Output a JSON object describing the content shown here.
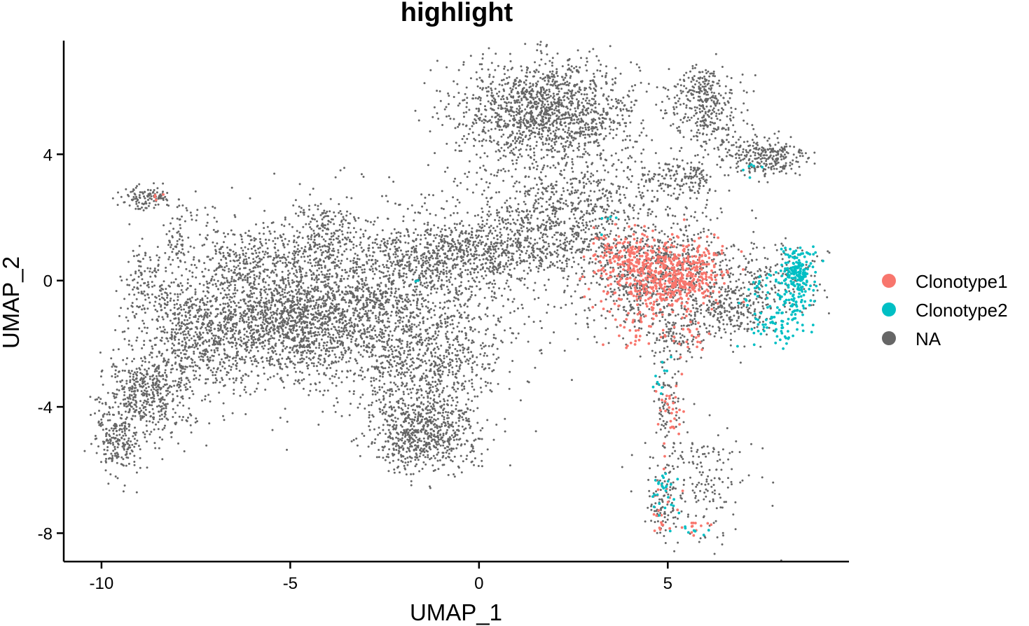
{
  "chart_data": {
    "type": "scatter",
    "title": "highlight",
    "xlabel": "UMAP_1",
    "ylabel": "UMAP_2",
    "xlim": [
      -11,
      9.8
    ],
    "ylim": [
      -8.9,
      7.6
    ],
    "x_ticks": [
      -10,
      -5,
      0,
      5
    ],
    "x_tick_labels": [
      "-10",
      "-5",
      "0",
      "5"
    ],
    "y_ticks": [
      -8,
      -4,
      0,
      4
    ],
    "y_tick_labels": [
      "-8",
      "-4",
      "0",
      "4"
    ],
    "grid": false,
    "legend_position": "right",
    "series": [
      {
        "name": "Clonotype1",
        "color": "#F8766D",
        "clusters": [
          {
            "cx": 4.6,
            "cy": 0.2,
            "sx": 0.75,
            "sy": 0.55,
            "n": 420
          },
          {
            "cx": 5.5,
            "cy": 0.3,
            "sx": 0.5,
            "sy": 0.5,
            "n": 200
          },
          {
            "cx": 3.8,
            "cy": 0.9,
            "sx": 0.4,
            "sy": 0.35,
            "n": 70
          },
          {
            "cx": 4.3,
            "cy": -1.4,
            "sx": 0.3,
            "sy": 0.3,
            "n": 30
          },
          {
            "cx": 5.6,
            "cy": -1.8,
            "sx": 0.3,
            "sy": 0.3,
            "n": 25
          },
          {
            "cx": 5.1,
            "cy": -4.4,
            "sx": 0.15,
            "sy": 0.5,
            "n": 30
          },
          {
            "cx": 4.9,
            "cy": -7.3,
            "sx": 0.2,
            "sy": 0.5,
            "n": 22
          },
          {
            "cx": 5.6,
            "cy": -7.8,
            "sx": 0.3,
            "sy": 0.12,
            "n": 12
          },
          {
            "cx": -8.5,
            "cy": 2.7,
            "sx": 0.08,
            "sy": 0.08,
            "n": 5
          }
        ]
      },
      {
        "name": "Clonotype2",
        "color": "#00BFC4",
        "clusters": [
          {
            "cx": 8.4,
            "cy": 0.3,
            "sx": 0.22,
            "sy": 0.35,
            "n": 170
          },
          {
            "cx": 8.3,
            "cy": -0.8,
            "sx": 0.22,
            "sy": 0.35,
            "n": 60
          },
          {
            "cx": 7.8,
            "cy": -1.6,
            "sx": 0.45,
            "sy": 0.25,
            "n": 45
          },
          {
            "cx": 7.5,
            "cy": -0.4,
            "sx": 0.3,
            "sy": 0.4,
            "n": 30
          },
          {
            "cx": 4.9,
            "cy": -6.6,
            "sx": 0.2,
            "sy": 0.45,
            "n": 28
          },
          {
            "cx": 4.8,
            "cy": -3.2,
            "sx": 0.12,
            "sy": 0.4,
            "n": 10
          },
          {
            "cx": 5.6,
            "cy": -7.9,
            "sx": 0.2,
            "sy": 0.1,
            "n": 8
          },
          {
            "cx": 7.3,
            "cy": 3.5,
            "sx": 0.1,
            "sy": 0.12,
            "n": 6
          },
          {
            "cx": 3.4,
            "cy": 1.8,
            "sx": 0.2,
            "sy": 0.2,
            "n": 5
          },
          {
            "cx": -1.6,
            "cy": 0.0,
            "sx": 0.05,
            "sy": 0.05,
            "n": 2
          }
        ]
      },
      {
        "name": "NA",
        "color": "#666666",
        "clusters": [
          {
            "cx": 1.8,
            "cy": 5.4,
            "sx": 1.2,
            "sy": 0.8,
            "n": 1400
          },
          {
            "cx": 5.9,
            "cy": 5.8,
            "sx": 0.45,
            "sy": 0.5,
            "n": 260
          },
          {
            "cx": 7.6,
            "cy": 3.9,
            "sx": 0.55,
            "sy": 0.35,
            "n": 260
          },
          {
            "cx": 5.3,
            "cy": 3.2,
            "sx": 0.5,
            "sy": 0.3,
            "n": 130
          },
          {
            "cx": 6.3,
            "cy": 4.8,
            "sx": 0.4,
            "sy": 0.6,
            "n": 110
          },
          {
            "cx": 2.5,
            "cy": 2.6,
            "sx": 1.5,
            "sy": 0.9,
            "n": 650
          },
          {
            "cx": 1.4,
            "cy": 1.3,
            "sx": 1.0,
            "sy": 0.6,
            "n": 380
          },
          {
            "cx": 4.8,
            "cy": 0.2,
            "sx": 1.1,
            "sy": 0.8,
            "n": 850
          },
          {
            "cx": 6.7,
            "cy": -0.9,
            "sx": 0.6,
            "sy": 0.5,
            "n": 230
          },
          {
            "cx": 7.8,
            "cy": 0.1,
            "sx": 0.7,
            "sy": 0.6,
            "n": 150
          },
          {
            "cx": 5.2,
            "cy": -1.8,
            "sx": 0.4,
            "sy": 0.35,
            "n": 90
          },
          {
            "cx": 5.0,
            "cy": -3.8,
            "sx": 0.18,
            "sy": 0.9,
            "n": 80
          },
          {
            "cx": 5.8,
            "cy": -6.5,
            "sx": 0.7,
            "sy": 0.9,
            "n": 190
          },
          {
            "cx": 4.9,
            "cy": -7.2,
            "sx": 0.2,
            "sy": 0.5,
            "n": 60
          },
          {
            "cx": -2.7,
            "cy": -0.9,
            "sx": 1.9,
            "sy": 1.4,
            "n": 2000
          },
          {
            "cx": -1.5,
            "cy": -4.8,
            "sx": 0.7,
            "sy": 0.6,
            "n": 700
          },
          {
            "cx": -1.3,
            "cy": -3.0,
            "sx": 0.9,
            "sy": 0.7,
            "n": 300
          },
          {
            "cx": -0.8,
            "cy": 0.9,
            "sx": 1.3,
            "sy": 0.45,
            "n": 500
          },
          {
            "cx": -5.0,
            "cy": -1.3,
            "sx": 1.2,
            "sy": 0.8,
            "n": 1000
          },
          {
            "cx": -7.4,
            "cy": -1.7,
            "sx": 0.9,
            "sy": 1.0,
            "n": 800
          },
          {
            "cx": -8.8,
            "cy": -3.7,
            "sx": 0.6,
            "sy": 0.7,
            "n": 450
          },
          {
            "cx": -9.6,
            "cy": -5.1,
            "sx": 0.3,
            "sy": 0.5,
            "n": 200
          },
          {
            "cx": -6.0,
            "cy": 0.6,
            "sx": 0.8,
            "sy": 0.6,
            "n": 300
          },
          {
            "cx": -4.2,
            "cy": 1.3,
            "sx": 0.5,
            "sy": 0.7,
            "n": 200
          },
          {
            "cx": -8.8,
            "cy": 0.0,
            "sx": 0.3,
            "sy": 0.6,
            "n": 110
          },
          {
            "cx": -8.8,
            "cy": 2.6,
            "sx": 0.4,
            "sy": 0.2,
            "n": 110
          },
          {
            "cx": -8.0,
            "cy": 1.3,
            "sx": 0.2,
            "sy": 0.5,
            "n": 60
          },
          {
            "cx": -7.0,
            "cy": 1.8,
            "sx": 0.4,
            "sy": 0.3,
            "n": 15
          }
        ]
      }
    ]
  }
}
